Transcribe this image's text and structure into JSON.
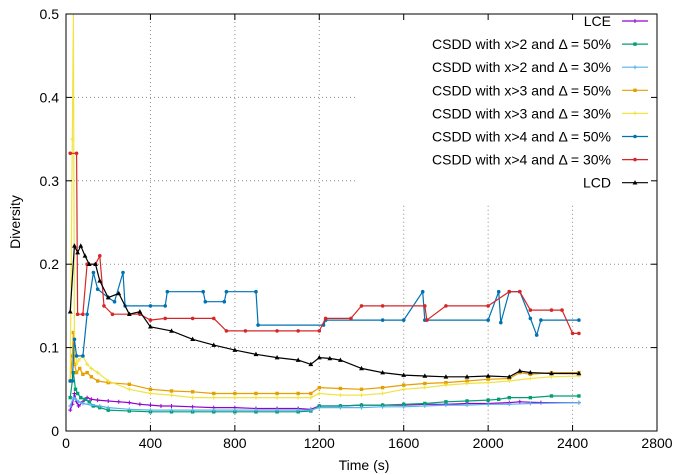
{
  "chart_data": {
    "type": "line",
    "xlabel": "Time (s)",
    "ylabel": "Diversity",
    "xlim": [
      0,
      2800
    ],
    "ylim": [
      0,
      0.5
    ],
    "xticks": [
      "0",
      "400",
      "800",
      "1200",
      "1600",
      "2000",
      "2400",
      "2800"
    ],
    "yticks": [
      "0",
      "0.1",
      "0.2",
      "0.3",
      "0.4",
      "0.5"
    ],
    "grid": true,
    "legend_position": "top-right",
    "series": [
      {
        "name": "LCE",
        "color": "#9400d3",
        "marker": "plus",
        "points": [
          [
            20,
            0.025
          ],
          [
            30,
            0.032
          ],
          [
            40,
            0.045
          ],
          [
            50,
            0.035
          ],
          [
            60,
            0.03
          ],
          [
            80,
            0.035
          ],
          [
            100,
            0.04
          ],
          [
            120,
            0.038
          ],
          [
            150,
            0.037
          ],
          [
            200,
            0.036
          ],
          [
            250,
            0.035
          ],
          [
            300,
            0.034
          ],
          [
            350,
            0.032
          ],
          [
            400,
            0.031
          ],
          [
            450,
            0.03
          ],
          [
            500,
            0.03
          ],
          [
            600,
            0.029
          ],
          [
            700,
            0.028
          ],
          [
            800,
            0.028
          ],
          [
            900,
            0.027
          ],
          [
            1000,
            0.027
          ],
          [
            1100,
            0.027
          ],
          [
            1160,
            0.026
          ],
          [
            1200,
            0.03
          ],
          [
            1300,
            0.03
          ],
          [
            1400,
            0.031
          ],
          [
            1500,
            0.031
          ],
          [
            1600,
            0.031
          ],
          [
            1700,
            0.032
          ],
          [
            1800,
            0.032
          ],
          [
            1900,
            0.033
          ],
          [
            2000,
            0.033
          ],
          [
            2100,
            0.034
          ],
          [
            2150,
            0.035
          ],
          [
            2250,
            0.034
          ],
          [
            2430,
            0.034
          ]
        ]
      },
      {
        "name": "CSDD with x>2 and Δ = 50%",
        "color": "#009e73",
        "marker": "square",
        "points": [
          [
            20,
            0.04
          ],
          [
            35,
            0.07
          ],
          [
            45,
            0.05
          ],
          [
            55,
            0.045
          ],
          [
            70,
            0.04
          ],
          [
            90,
            0.038
          ],
          [
            110,
            0.035
          ],
          [
            130,
            0.03
          ],
          [
            160,
            0.028
          ],
          [
            200,
            0.025
          ],
          [
            300,
            0.024
          ],
          [
            400,
            0.023
          ],
          [
            500,
            0.023
          ],
          [
            600,
            0.023
          ],
          [
            700,
            0.023
          ],
          [
            800,
            0.023
          ],
          [
            900,
            0.023
          ],
          [
            1000,
            0.023
          ],
          [
            1100,
            0.023
          ],
          [
            1160,
            0.024
          ],
          [
            1200,
            0.03
          ],
          [
            1300,
            0.03
          ],
          [
            1400,
            0.031
          ],
          [
            1500,
            0.031
          ],
          [
            1600,
            0.032
          ],
          [
            1700,
            0.033
          ],
          [
            1800,
            0.035
          ],
          [
            1900,
            0.036
          ],
          [
            2000,
            0.037
          ],
          [
            2050,
            0.038
          ],
          [
            2100,
            0.04
          ],
          [
            2200,
            0.04
          ],
          [
            2300,
            0.042
          ],
          [
            2430,
            0.042
          ]
        ]
      },
      {
        "name": "CSDD with x>2 and Δ = 30%",
        "color": "#56b4e9",
        "marker": "plus",
        "points": [
          [
            20,
            0.03
          ],
          [
            35,
            0.04
          ],
          [
            45,
            0.038
          ],
          [
            60,
            0.035
          ],
          [
            80,
            0.033
          ],
          [
            120,
            0.031
          ],
          [
            160,
            0.03
          ],
          [
            200,
            0.028
          ],
          [
            300,
            0.026
          ],
          [
            400,
            0.025
          ],
          [
            500,
            0.025
          ],
          [
            600,
            0.025
          ],
          [
            700,
            0.025
          ],
          [
            800,
            0.025
          ],
          [
            900,
            0.025
          ],
          [
            1000,
            0.025
          ],
          [
            1100,
            0.025
          ],
          [
            1160,
            0.025
          ],
          [
            1200,
            0.028
          ],
          [
            1300,
            0.028
          ],
          [
            1400,
            0.028
          ],
          [
            1500,
            0.029
          ],
          [
            1600,
            0.029
          ],
          [
            1700,
            0.03
          ],
          [
            1800,
            0.031
          ],
          [
            1900,
            0.031
          ],
          [
            2000,
            0.032
          ],
          [
            2100,
            0.032
          ],
          [
            2200,
            0.033
          ],
          [
            2430,
            0.034
          ]
        ]
      },
      {
        "name": "CSDD with x>3 and Δ = 50%",
        "color": "#e69f00",
        "marker": "square",
        "points": [
          [
            20,
            0.06
          ],
          [
            30,
            0.09
          ],
          [
            35,
            0.118
          ],
          [
            40,
            0.08
          ],
          [
            50,
            0.07
          ],
          [
            65,
            0.075
          ],
          [
            80,
            0.068
          ],
          [
            100,
            0.07
          ],
          [
            120,
            0.065
          ],
          [
            150,
            0.06
          ],
          [
            200,
            0.058
          ],
          [
            300,
            0.056
          ],
          [
            400,
            0.05
          ],
          [
            500,
            0.048
          ],
          [
            600,
            0.047
          ],
          [
            700,
            0.045
          ],
          [
            800,
            0.045
          ],
          [
            900,
            0.045
          ],
          [
            1000,
            0.045
          ],
          [
            1100,
            0.045
          ],
          [
            1160,
            0.045
          ],
          [
            1200,
            0.052
          ],
          [
            1300,
            0.051
          ],
          [
            1400,
            0.05
          ],
          [
            1500,
            0.052
          ],
          [
            1600,
            0.055
          ],
          [
            1700,
            0.057
          ],
          [
            1800,
            0.058
          ],
          [
            1900,
            0.06
          ],
          [
            2000,
            0.062
          ],
          [
            2100,
            0.063
          ],
          [
            2150,
            0.07
          ],
          [
            2200,
            0.068
          ],
          [
            2300,
            0.07
          ],
          [
            2430,
            0.07
          ]
        ]
      },
      {
        "name": "CSDD with x>3 and Δ = 30%",
        "color": "#f0e442",
        "marker": "plus",
        "points": [
          [
            20,
            0.06
          ],
          [
            30,
            0.35
          ],
          [
            35,
            0.5
          ],
          [
            40,
            0.11
          ],
          [
            50,
            0.08
          ],
          [
            60,
            0.085
          ],
          [
            80,
            0.09
          ],
          [
            100,
            0.08
          ],
          [
            120,
            0.075
          ],
          [
            150,
            0.07
          ],
          [
            200,
            0.06
          ],
          [
            300,
            0.05
          ],
          [
            400,
            0.045
          ],
          [
            500,
            0.043
          ],
          [
            600,
            0.04
          ],
          [
            700,
            0.04
          ],
          [
            800,
            0.04
          ],
          [
            900,
            0.04
          ],
          [
            1000,
            0.04
          ],
          [
            1100,
            0.04
          ],
          [
            1160,
            0.04
          ],
          [
            1200,
            0.045
          ],
          [
            1300,
            0.043
          ],
          [
            1400,
            0.043
          ],
          [
            1500,
            0.045
          ],
          [
            1600,
            0.05
          ],
          [
            1700,
            0.052
          ],
          [
            1800,
            0.055
          ],
          [
            1900,
            0.057
          ],
          [
            2000,
            0.058
          ],
          [
            2100,
            0.06
          ],
          [
            2200,
            0.063
          ],
          [
            2300,
            0.065
          ],
          [
            2430,
            0.066
          ]
        ]
      },
      {
        "name": "CSDD with x>4 and Δ = 50%",
        "color": "#0072b2",
        "marker": "circle",
        "points": [
          [
            20,
            0.06
          ],
          [
            30,
            0.06
          ],
          [
            40,
            0.11
          ],
          [
            50,
            0.09
          ],
          [
            80,
            0.09
          ],
          [
            100,
            0.14
          ],
          [
            130,
            0.19
          ],
          [
            150,
            0.17
          ],
          [
            200,
            0.16
          ],
          [
            230,
            0.155
          ],
          [
            270,
            0.19
          ],
          [
            280,
            0.15
          ],
          [
            400,
            0.15
          ],
          [
            470,
            0.15
          ],
          [
            480,
            0.167
          ],
          [
            650,
            0.167
          ],
          [
            660,
            0.155
          ],
          [
            750,
            0.155
          ],
          [
            760,
            0.167
          ],
          [
            900,
            0.167
          ],
          [
            910,
            0.127
          ],
          [
            1220,
            0.127
          ],
          [
            1230,
            0.133
          ],
          [
            1500,
            0.133
          ],
          [
            1600,
            0.133
          ],
          [
            1690,
            0.167
          ],
          [
            1700,
            0.133
          ],
          [
            2000,
            0.133
          ],
          [
            2050,
            0.167
          ],
          [
            2060,
            0.13
          ],
          [
            2100,
            0.167
          ],
          [
            2150,
            0.167
          ],
          [
            2200,
            0.135
          ],
          [
            2230,
            0.115
          ],
          [
            2250,
            0.133
          ],
          [
            2430,
            0.133
          ]
        ]
      },
      {
        "name": "CSDD with x>4 and Δ = 30%",
        "color": "#d62728",
        "marker": "circle",
        "points": [
          [
            20,
            0.333
          ],
          [
            50,
            0.333
          ],
          [
            55,
            0.14
          ],
          [
            80,
            0.14
          ],
          [
            100,
            0.2
          ],
          [
            140,
            0.2
          ],
          [
            160,
            0.21
          ],
          [
            180,
            0.15
          ],
          [
            220,
            0.14
          ],
          [
            300,
            0.14
          ],
          [
            350,
            0.14
          ],
          [
            400,
            0.133
          ],
          [
            470,
            0.135
          ],
          [
            600,
            0.135
          ],
          [
            700,
            0.135
          ],
          [
            760,
            0.12
          ],
          [
            850,
            0.12
          ],
          [
            1000,
            0.12
          ],
          [
            1100,
            0.12
          ],
          [
            1200,
            0.12
          ],
          [
            1230,
            0.135
          ],
          [
            1350,
            0.135
          ],
          [
            1400,
            0.15
          ],
          [
            1500,
            0.15
          ],
          [
            1700,
            0.15
          ],
          [
            1710,
            0.133
          ],
          [
            1800,
            0.15
          ],
          [
            2000,
            0.15
          ],
          [
            2100,
            0.167
          ],
          [
            2150,
            0.167
          ],
          [
            2200,
            0.145
          ],
          [
            2300,
            0.145
          ],
          [
            2350,
            0.145
          ],
          [
            2400,
            0.117
          ],
          [
            2430,
            0.117
          ]
        ]
      },
      {
        "name": "LCD",
        "color": "#000000",
        "marker": "triangle",
        "points": [
          [
            20,
            0.143
          ],
          [
            40,
            0.222
          ],
          [
            55,
            0.214
          ],
          [
            70,
            0.222
          ],
          [
            90,
            0.21
          ],
          [
            110,
            0.2
          ],
          [
            140,
            0.2
          ],
          [
            160,
            0.18
          ],
          [
            200,
            0.16
          ],
          [
            250,
            0.165
          ],
          [
            300,
            0.14
          ],
          [
            350,
            0.143
          ],
          [
            400,
            0.125
          ],
          [
            500,
            0.12
          ],
          [
            600,
            0.11
          ],
          [
            700,
            0.103
          ],
          [
            800,
            0.097
          ],
          [
            900,
            0.092
          ],
          [
            1000,
            0.088
          ],
          [
            1100,
            0.085
          ],
          [
            1160,
            0.08
          ],
          [
            1200,
            0.088
          ],
          [
            1250,
            0.087
          ],
          [
            1300,
            0.085
          ],
          [
            1400,
            0.075
          ],
          [
            1500,
            0.07
          ],
          [
            1600,
            0.067
          ],
          [
            1700,
            0.066
          ],
          [
            1800,
            0.065
          ],
          [
            1900,
            0.065
          ],
          [
            2000,
            0.066
          ],
          [
            2100,
            0.065
          ],
          [
            2150,
            0.072
          ],
          [
            2200,
            0.07
          ],
          [
            2300,
            0.069
          ],
          [
            2430,
            0.069
          ]
        ]
      }
    ]
  }
}
